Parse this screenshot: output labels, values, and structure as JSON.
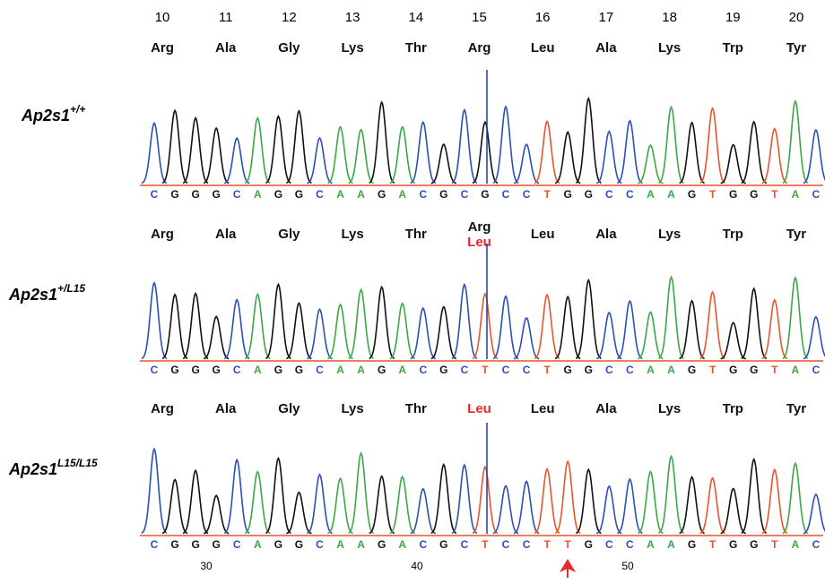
{
  "positions": [
    "10",
    "11",
    "12",
    "13",
    "14",
    "15",
    "16",
    "17",
    "18",
    "19",
    "20"
  ],
  "panels": [
    {
      "name": "Ap2s1",
      "sup": "+/+",
      "amino_acids": [
        "Arg",
        "Ala",
        "Gly",
        "Lys",
        "Thr",
        "Arg",
        "Leu",
        "Ala",
        "Lys",
        "Trp",
        "Tyr"
      ],
      "bases": [
        "C",
        "G",
        "G",
        "G",
        "C",
        "A",
        "G",
        "G",
        "C",
        "A",
        "A",
        "G",
        "A",
        "C",
        "G",
        "C",
        "G",
        "C",
        "C",
        "T",
        "G",
        "G",
        "C",
        "C",
        "A",
        "A",
        "G",
        "T",
        "G",
        "G",
        "T",
        "A",
        "C"
      ]
    },
    {
      "name": "Ap2s1",
      "sup": "+/L15",
      "amino_acids": [
        "Arg",
        "Ala",
        "Gly",
        "Lys",
        "Thr",
        "Arg",
        "Leu",
        "Ala",
        "Lys",
        "Trp",
        "Tyr"
      ],
      "mutant": {
        "index": 5,
        "label": "Leu"
      },
      "bases": [
        "C",
        "G",
        "G",
        "G",
        "C",
        "A",
        "G",
        "G",
        "C",
        "A",
        "A",
        "G",
        "A",
        "C",
        "G",
        "C",
        "T",
        "C",
        "C",
        "T",
        "G",
        "G",
        "C",
        "C",
        "A",
        "A",
        "G",
        "T",
        "G",
        "G",
        "T",
        "A",
        "C"
      ]
    },
    {
      "name": "Ap2s1",
      "sup": "L15/L15",
      "amino_acids": [
        "Arg",
        "Ala",
        "Gly",
        "Lys",
        "Thr",
        "Leu",
        "Leu",
        "Ala",
        "Lys",
        "Trp",
        "Tyr"
      ],
      "bases": [
        "C",
        "G",
        "G",
        "G",
        "C",
        "A",
        "G",
        "G",
        "C",
        "A",
        "A",
        "G",
        "A",
        "C",
        "G",
        "C",
        "T",
        "C",
        "C",
        "T",
        "T",
        "G",
        "C",
        "C",
        "A",
        "A",
        "G",
        "T",
        "G",
        "G",
        "T",
        "A",
        "C"
      ]
    }
  ],
  "base_numbers": [
    "30",
    "40",
    "50"
  ]
}
